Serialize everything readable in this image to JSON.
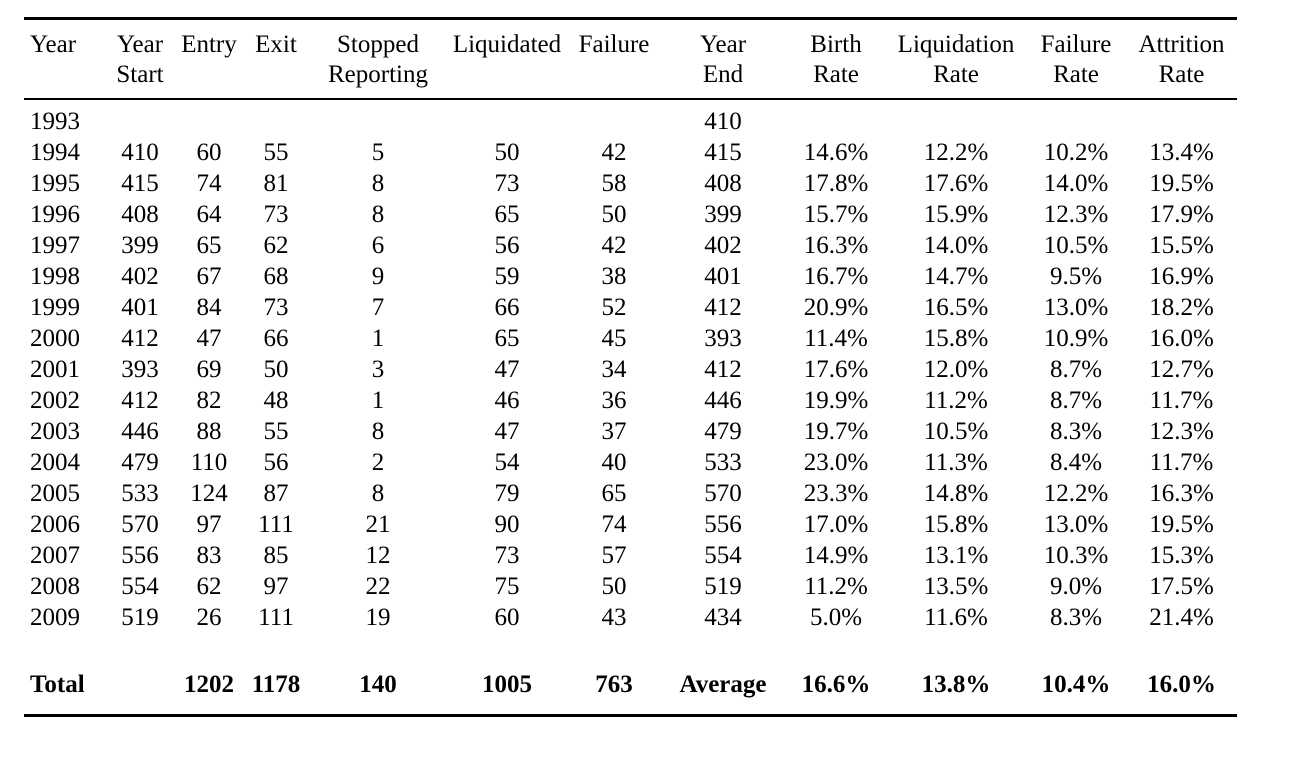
{
  "table": {
    "columns": [
      {
        "id": "year",
        "line1": "Year",
        "line2": ""
      },
      {
        "id": "year-start",
        "line1": "Year",
        "line2": "Start"
      },
      {
        "id": "entry",
        "line1": "Entry",
        "line2": ""
      },
      {
        "id": "exit",
        "line1": "Exit",
        "line2": ""
      },
      {
        "id": "stopped-reporting",
        "line1": "Stopped",
        "line2": "Reporting"
      },
      {
        "id": "liquidated",
        "line1": "Liquidated",
        "line2": ""
      },
      {
        "id": "failure",
        "line1": "Failure",
        "line2": ""
      },
      {
        "id": "year-end",
        "line1": "Year",
        "line2": "End"
      },
      {
        "id": "birth-rate",
        "line1": "Birth",
        "line2": "Rate"
      },
      {
        "id": "liquidation-rate",
        "line1": "Liquidation",
        "line2": "Rate"
      },
      {
        "id": "failure-rate",
        "line1": "Failure",
        "line2": "Rate"
      },
      {
        "id": "attrition-rate",
        "line1": "Attrition",
        "line2": "Rate"
      }
    ],
    "rows": [
      [
        "1993",
        "",
        "",
        "",
        "",
        "",
        "",
        "410",
        "",
        "",
        "",
        ""
      ],
      [
        "1994",
        "410",
        "60",
        "55",
        "5",
        "50",
        "42",
        "415",
        "14.6%",
        "12.2%",
        "10.2%",
        "13.4%"
      ],
      [
        "1995",
        "415",
        "74",
        "81",
        "8",
        "73",
        "58",
        "408",
        "17.8%",
        "17.6%",
        "14.0%",
        "19.5%"
      ],
      [
        "1996",
        "408",
        "64",
        "73",
        "8",
        "65",
        "50",
        "399",
        "15.7%",
        "15.9%",
        "12.3%",
        "17.9%"
      ],
      [
        "1997",
        "399",
        "65",
        "62",
        "6",
        "56",
        "42",
        "402",
        "16.3%",
        "14.0%",
        "10.5%",
        "15.5%"
      ],
      [
        "1998",
        "402",
        "67",
        "68",
        "9",
        "59",
        "38",
        "401",
        "16.7%",
        "14.7%",
        "9.5%",
        "16.9%"
      ],
      [
        "1999",
        "401",
        "84",
        "73",
        "7",
        "66",
        "52",
        "412",
        "20.9%",
        "16.5%",
        "13.0%",
        "18.2%"
      ],
      [
        "2000",
        "412",
        "47",
        "66",
        "1",
        "65",
        "45",
        "393",
        "11.4%",
        "15.8%",
        "10.9%",
        "16.0%"
      ],
      [
        "2001",
        "393",
        "69",
        "50",
        "3",
        "47",
        "34",
        "412",
        "17.6%",
        "12.0%",
        "8.7%",
        "12.7%"
      ],
      [
        "2002",
        "412",
        "82",
        "48",
        "1",
        "46",
        "36",
        "446",
        "19.9%",
        "11.2%",
        "8.7%",
        "11.7%"
      ],
      [
        "2003",
        "446",
        "88",
        "55",
        "8",
        "47",
        "37",
        "479",
        "19.7%",
        "10.5%",
        "8.3%",
        "12.3%"
      ],
      [
        "2004",
        "479",
        "110",
        "56",
        "2",
        "54",
        "40",
        "533",
        "23.0%",
        "11.3%",
        "8.4%",
        "11.7%"
      ],
      [
        "2005",
        "533",
        "124",
        "87",
        "8",
        "79",
        "65",
        "570",
        "23.3%",
        "14.8%",
        "12.2%",
        "16.3%"
      ],
      [
        "2006",
        "570",
        "97",
        "111",
        "21",
        "90",
        "74",
        "556",
        "17.0%",
        "15.8%",
        "13.0%",
        "19.5%"
      ],
      [
        "2007",
        "556",
        "83",
        "85",
        "12",
        "73",
        "57",
        "554",
        "14.9%",
        "13.1%",
        "10.3%",
        "15.3%"
      ],
      [
        "2008",
        "554",
        "62",
        "97",
        "22",
        "75",
        "50",
        "519",
        "11.2%",
        "13.5%",
        "9.0%",
        "17.5%"
      ],
      [
        "2009",
        "519",
        "26",
        "111",
        "19",
        "60",
        "43",
        "434",
        "5.0%",
        "11.6%",
        "8.3%",
        "21.4%"
      ]
    ],
    "total_row": [
      "Total",
      "",
      "1202",
      "1178",
      "140",
      "1005",
      "763",
      "Average",
      "16.6%",
      "13.8%",
      "10.4%",
      "16.0%"
    ]
  },
  "chart_data": {
    "type": "table",
    "title": "",
    "columns": [
      "Year",
      "Year Start",
      "Entry",
      "Exit",
      "Stopped Reporting",
      "Liquidated",
      "Failure",
      "Year End",
      "Birth Rate",
      "Liquidation Rate",
      "Failure Rate",
      "Attrition Rate"
    ],
    "totals": {
      "entry": 1202,
      "exit": 1178,
      "stopped_reporting": 140,
      "liquidated": 1005,
      "failure": 763
    },
    "averages": {
      "birth_rate": "16.6%",
      "liquidation_rate": "13.8%",
      "failure_rate": "10.4%",
      "attrition_rate": "16.0%"
    }
  },
  "colors": {
    "background": "#ffffff",
    "text": "#000000",
    "rule": "#000000"
  }
}
